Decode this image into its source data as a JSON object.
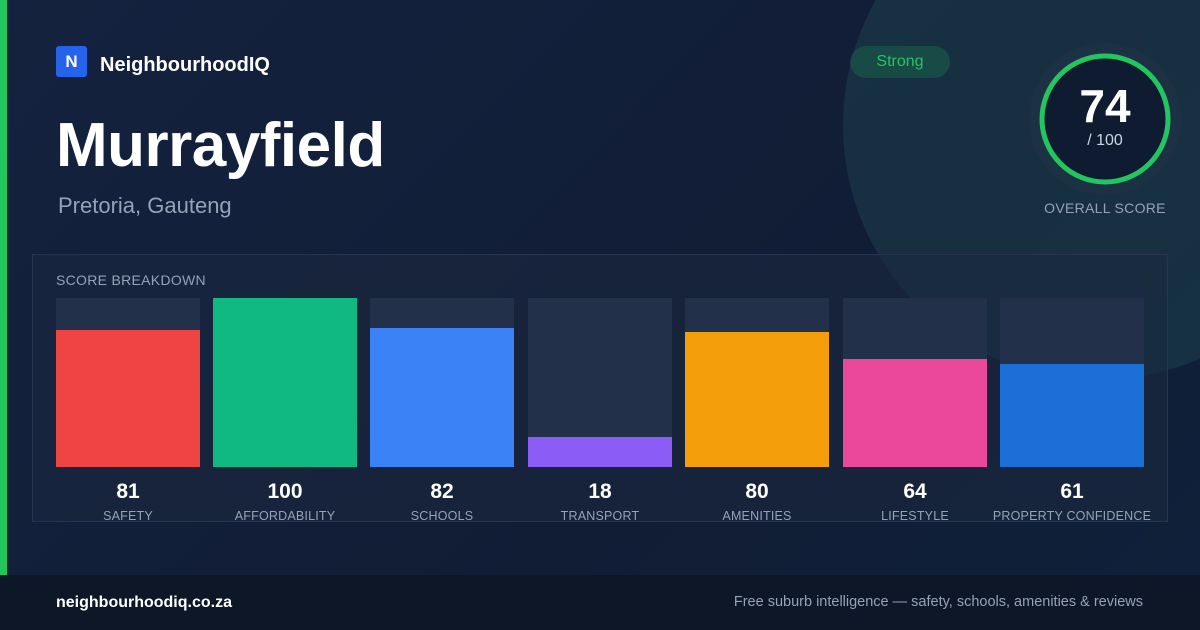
{
  "brand": {
    "logo_letter": "N",
    "name": "NeighbourhoodIQ"
  },
  "suburb": {
    "name": "Murrayfield",
    "location": "Pretoria, Gauteng"
  },
  "rating_badge": "Strong",
  "overall": {
    "score": "74",
    "out_of": "/ 100",
    "label": "OVERALL SCORE",
    "value": 74,
    "max": 100,
    "ring_color": "#22c55e"
  },
  "breakdown": {
    "title": "SCORE BREAKDOWN",
    "items": [
      {
        "label": "SAFETY",
        "value": 81,
        "display": "81",
        "color": "#ef4444"
      },
      {
        "label": "AFFORDABILITY",
        "value": 100,
        "display": "100",
        "color": "#10b981"
      },
      {
        "label": "SCHOOLS",
        "value": 82,
        "display": "82",
        "color": "#3b82f6"
      },
      {
        "label": "TRANSPORT",
        "value": 18,
        "display": "18",
        "color": "#8b5cf6"
      },
      {
        "label": "AMENITIES",
        "value": 80,
        "display": "80",
        "color": "#f59e0b"
      },
      {
        "label": "LIFESTYLE",
        "value": 64,
        "display": "64",
        "color": "#ec4899"
      },
      {
        "label": "PROPERTY CONFIDENCE",
        "value": 61,
        "display": "61",
        "color": "#1d6fd8"
      }
    ]
  },
  "footer": {
    "url": "neighbourhoodiq.co.za",
    "tagline": "Free suburb intelligence — safety, schools, amenities & reviews"
  }
}
